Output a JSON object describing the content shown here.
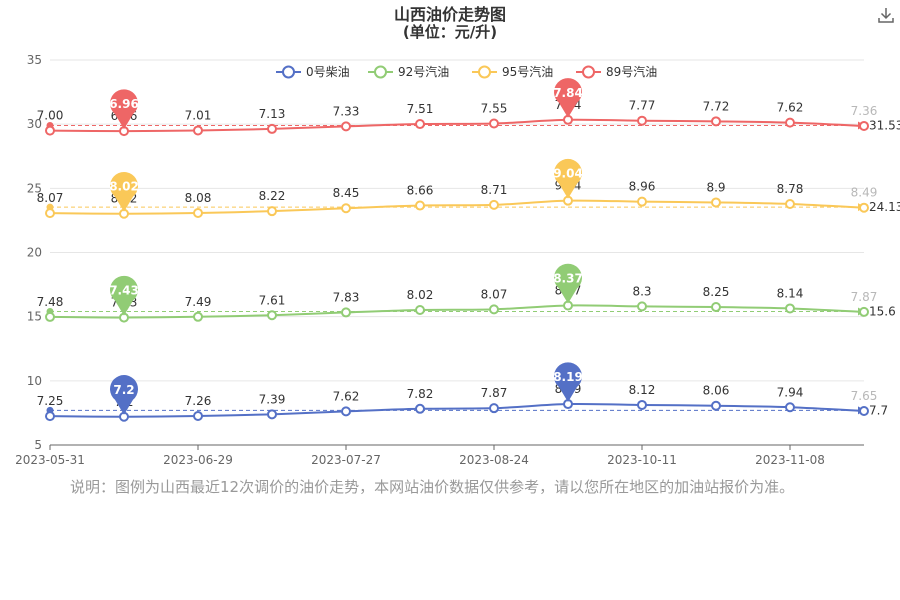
{
  "chart_data": {
    "type": "line",
    "title": "山西油价走势图",
    "subtitle": "(单位：元/升)",
    "x_tick_labels": [
      "2023-05-31",
      "2023-06-29",
      "2023-07-27",
      "2023-08-24",
      "2023-10-11",
      "2023-11-08"
    ],
    "ylim": [
      5,
      35
    ],
    "y_ticks": [
      5,
      10,
      15,
      20,
      25,
      30,
      35
    ],
    "grid": true,
    "legend_position": "top",
    "series": [
      {
        "name": "0号柴油",
        "color": "#5470c6",
        "offset": 0,
        "values": [
          7.25,
          7.2,
          7.26,
          7.39,
          7.62,
          7.82,
          7.87,
          8.19,
          8.12,
          8.06,
          7.94,
          7.65
        ],
        "value_labels": [
          "7.25",
          "7.2",
          "7.26",
          "7.39",
          "7.62",
          "7.82",
          "7.87",
          "8.19",
          "8.12",
          "8.06",
          "7.94",
          "7.65"
        ],
        "min_pin": "7.2",
        "max_pin": "8.19",
        "end_value": "7.7"
      },
      {
        "name": "92号汽油",
        "color": "#91cc75",
        "offset": 7.5,
        "values": [
          7.48,
          7.43,
          7.49,
          7.61,
          7.83,
          8.02,
          8.07,
          8.37,
          8.3,
          8.25,
          8.14,
          7.87
        ],
        "value_labels": [
          "7.48",
          "7.43",
          "7.49",
          "7.61",
          "7.83",
          "8.02",
          "8.07",
          "8.37",
          "8.3",
          "8.25",
          "8.14",
          "7.87"
        ],
        "min_pin": "7.43",
        "max_pin": "8.37",
        "end_value": "15.6"
      },
      {
        "name": "95号汽油",
        "color": "#fac858",
        "offset": 15,
        "values": [
          8.07,
          8.02,
          8.08,
          8.22,
          8.45,
          8.66,
          8.71,
          9.04,
          8.96,
          8.9,
          8.78,
          8.49
        ],
        "value_labels": [
          "8.07",
          "8.02",
          "8.08",
          "8.22",
          "8.45",
          "8.66",
          "8.71",
          "9.04",
          "8.96",
          "8.9",
          "8.78",
          "8.49"
        ],
        "min_pin": "8.02",
        "max_pin": "9.04",
        "end_value": "24.13"
      },
      {
        "name": "89号汽油",
        "color": "#ee6666",
        "offset": 22.5,
        "values": [
          7.0,
          6.96,
          7.01,
          7.13,
          7.33,
          7.51,
          7.55,
          7.84,
          7.77,
          7.72,
          7.62,
          7.36
        ],
        "value_labels": [
          "7.00",
          "6.96",
          "7.01",
          "7.13",
          "7.33",
          "7.51",
          "7.55",
          "7.84",
          "7.77",
          "7.72",
          "7.62",
          "7.36"
        ],
        "min_pin": "6.96",
        "max_pin": "7.84",
        "end_value": "31.53"
      }
    ]
  },
  "note": "说明：图例为山西最近12次调价的油价走势，本网站油价数据仅供参考，请以您所在地区的加油站报价为准。",
  "icons": {
    "download": "download-icon"
  }
}
